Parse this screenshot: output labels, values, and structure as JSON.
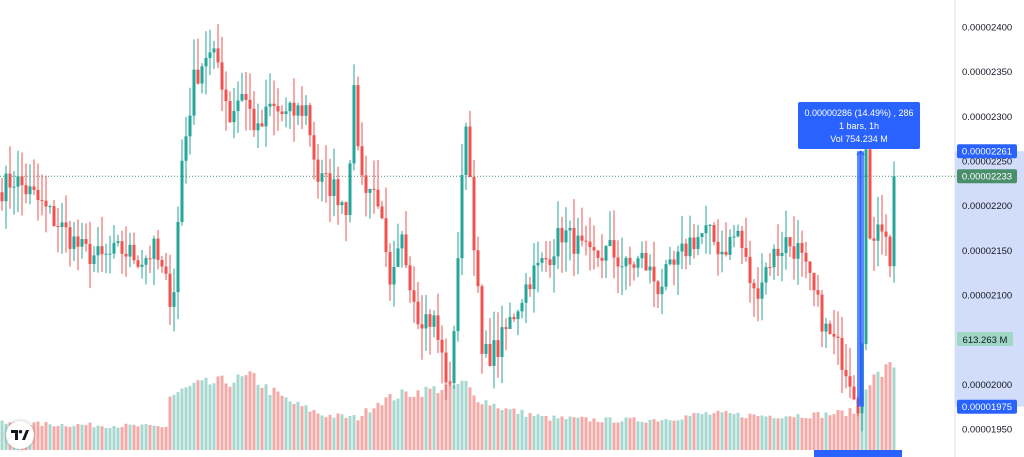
{
  "chart_data": {
    "type": "candlestick",
    "interval": "1h",
    "y_ticks": [
      1.95e-05,
      1.975e-05,
      2e-05,
      2.05e-05,
      2.1e-05,
      2.15e-05,
      2.2e-05,
      2.25e-05,
      2.3e-05,
      2.35e-05,
      2.4e-05
    ],
    "y_tick_labels": [
      "0.00001950",
      "",
      "0.00002000",
      "0.00002050",
      "0.00002100",
      "0.00002150",
      "0.00002200",
      "0.00002250",
      "0.00002300",
      "0.00002350",
      "0.00002400"
    ],
    "ylim": [
      1.931e-05,
      2.428e-05
    ],
    "grid": false,
    "price_line": 2.233e-05,
    "labels": {
      "price_tag": "0.00002233",
      "hover_tag": "0.00002261",
      "low_tag": "0.00001975",
      "volume_tag": "613.263 M"
    },
    "measure": {
      "line1": "0.00000286 (14.49%) , 286",
      "line2": "1 bars, 1h",
      "line3": "Vol 754.234 M",
      "from": 1.975e-05,
      "to": 2.261e-05
    },
    "path_closes": [
      [
        0,
        2.22e-05
      ],
      [
        3,
        2.23e-05
      ],
      [
        8,
        2.21e-05
      ],
      [
        12,
        2.19e-05
      ],
      [
        16,
        2.17e-05
      ],
      [
        20,
        2.15e-05
      ],
      [
        25,
        2.14e-05
      ],
      [
        30,
        2.15e-05
      ],
      [
        35,
        2.14e-05
      ],
      [
        38,
        2.15e-05
      ],
      [
        42,
        2.1e-05
      ],
      [
        43,
        2.11e-05
      ],
      [
        45,
        2.25e-05
      ],
      [
        48,
        2.34e-05
      ],
      [
        51,
        2.37e-05
      ],
      [
        54,
        2.36e-05
      ],
      [
        57,
        2.3e-05
      ],
      [
        60,
        2.33e-05
      ],
      [
        64,
        2.28e-05
      ],
      [
        67,
        2.31e-05
      ],
      [
        71,
        2.3e-05
      ],
      [
        76,
        2.31e-05
      ],
      [
        79,
        2.23e-05
      ],
      [
        83,
        2.22e-05
      ],
      [
        86,
        2.2e-05
      ],
      [
        88,
        2.32e-05
      ],
      [
        90,
        2.23e-05
      ],
      [
        94,
        2.21e-05
      ],
      [
        97,
        2.1e-05
      ],
      [
        100,
        2.16e-05
      ],
      [
        104,
        2.08e-05
      ],
      [
        108,
        2.07e-05
      ],
      [
        112,
        1.99e-05
      ],
      [
        116,
        2.3e-05
      ],
      [
        120,
        2.03e-05
      ],
      [
        124,
        2.04e-05
      ],
      [
        128,
        2.08e-05
      ],
      [
        132,
        2.12e-05
      ],
      [
        136,
        2.14e-05
      ],
      [
        140,
        2.17e-05
      ],
      [
        143,
        2.16e-05
      ],
      [
        147,
        2.14e-05
      ],
      [
        152,
        2.15e-05
      ],
      [
        156,
        2.13e-05
      ],
      [
        160,
        2.14e-05
      ],
      [
        164,
        2.11e-05
      ],
      [
        168,
        2.13e-05
      ],
      [
        172,
        2.16e-05
      ],
      [
        176,
        2.17e-05
      ],
      [
        180,
        2.15e-05
      ],
      [
        184,
        2.17e-05
      ],
      [
        188,
        2.1e-05
      ],
      [
        192,
        2.14e-05
      ],
      [
        196,
        2.16e-05
      ],
      [
        199,
        2.15e-05
      ],
      [
        203,
        2.1e-05
      ],
      [
        206,
        2.06e-05
      ],
      [
        209,
        2.04e-05
      ],
      [
        212,
        2.01e-05
      ],
      [
        214,
        1.98e-05
      ],
      [
        215,
        2.06e-05
      ],
      [
        216,
        2.26e-05
      ],
      [
        217,
        2.15e-05
      ],
      [
        219,
        2.19e-05
      ],
      [
        220,
        2.18e-05
      ],
      [
        222,
        2.14e-05
      ],
      [
        223,
        2.16e-05
      ]
    ],
    "volume_profile": [
      [
        0,
        0.25
      ],
      [
        38,
        0.22
      ],
      [
        41,
        0.22
      ],
      [
        42,
        0.5
      ],
      [
        48,
        0.6
      ],
      [
        58,
        0.65
      ],
      [
        63,
        0.68
      ],
      [
        66,
        0.58
      ],
      [
        72,
        0.45
      ],
      [
        80,
        0.33
      ],
      [
        89,
        0.3
      ],
      [
        94,
        0.45
      ],
      [
        100,
        0.52
      ],
      [
        110,
        0.58
      ],
      [
        116,
        0.62
      ],
      [
        118,
        0.5
      ],
      [
        126,
        0.38
      ],
      [
        136,
        0.3
      ],
      [
        150,
        0.28
      ],
      [
        160,
        0.28
      ],
      [
        166,
        0.29
      ],
      [
        176,
        0.34
      ],
      [
        190,
        0.32
      ],
      [
        205,
        0.33
      ],
      [
        213,
        0.36
      ],
      [
        215,
        0.6
      ],
      [
        220,
        0.72
      ],
      [
        223,
        0.8
      ]
    ],
    "colors": {
      "up": "#26a69a",
      "down": "#ef5350",
      "volume_up": "#a7d8cf",
      "volume_down": "#f4a9a7",
      "measure": "#2962ff",
      "price_tag": "#4a8f6c"
    }
  }
}
